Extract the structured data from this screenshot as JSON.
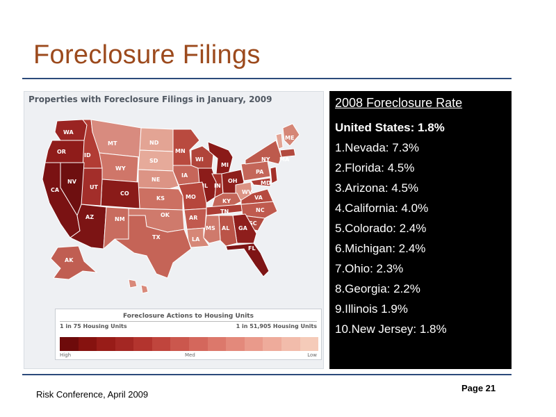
{
  "slide": {
    "title": "Foreclosure Filings",
    "footer_left": "Risk Conference, April 2009",
    "footer_right": "Page 21"
  },
  "map": {
    "heading": "Properties with Foreclosure Filings in January, 2009",
    "states": [
      {
        "abbr": "WA",
        "color": "#9a2422"
      },
      {
        "abbr": "OR",
        "color": "#8f1c1a"
      },
      {
        "abbr": "ID",
        "color": "#b23c34"
      },
      {
        "abbr": "MT",
        "color": "#d88b7f"
      },
      {
        "abbr": "ND",
        "color": "#e3a494"
      },
      {
        "abbr": "MN",
        "color": "#b94a3f"
      },
      {
        "abbr": "WY",
        "color": "#cf7669"
      },
      {
        "abbr": "SD",
        "color": "#e6aa9a"
      },
      {
        "abbr": "NE",
        "color": "#dc9485"
      },
      {
        "abbr": "IA",
        "color": "#c6665a"
      },
      {
        "abbr": "NV",
        "color": "#6e0f10"
      },
      {
        "abbr": "UT",
        "color": "#a32e2a"
      },
      {
        "abbr": "CO",
        "color": "#8a1b19"
      },
      {
        "abbr": "KS",
        "color": "#cc7062"
      },
      {
        "abbr": "MO",
        "color": "#b6463c"
      },
      {
        "abbr": "CA",
        "color": "#7a1213"
      },
      {
        "abbr": "AZ",
        "color": "#7c1414"
      },
      {
        "abbr": "NM",
        "color": "#c86c5f"
      },
      {
        "abbr": "OK",
        "color": "#cf7a6c"
      },
      {
        "abbr": "AR",
        "color": "#c15a4f"
      },
      {
        "abbr": "TX",
        "color": "#c56457"
      },
      {
        "abbr": "LA",
        "color": "#d68777"
      },
      {
        "abbr": "MS",
        "color": "#cf7a6c"
      },
      {
        "abbr": "AL",
        "color": "#bb5448"
      },
      {
        "abbr": "GA",
        "color": "#8e1e1c"
      },
      {
        "abbr": "FL",
        "color": "#7e1515"
      },
      {
        "abbr": "SC",
        "color": "#b24a3f"
      },
      {
        "abbr": "NC",
        "color": "#bf5a4e"
      },
      {
        "abbr": "TN",
        "color": "#ad3e36"
      },
      {
        "abbr": "KY",
        "color": "#c46659"
      },
      {
        "abbr": "IL",
        "color": "#8c1c1a"
      },
      {
        "abbr": "WI",
        "color": "#b0443a"
      },
      {
        "abbr": "MI",
        "color": "#8a1a18"
      },
      {
        "abbr": "IN",
        "color": "#a53029"
      },
      {
        "abbr": "OH",
        "color": "#8e201c"
      },
      {
        "abbr": "WV",
        "color": "#dc9485"
      },
      {
        "abbr": "VA",
        "color": "#b64a3f"
      },
      {
        "abbr": "PA",
        "color": "#c46659"
      },
      {
        "abbr": "NY",
        "color": "#bd5a4d"
      },
      {
        "abbr": "ME",
        "color": "#d58676"
      },
      {
        "abbr": "MD",
        "color": "#ad3b33"
      },
      {
        "abbr": "NJ",
        "color": "#a33029"
      },
      {
        "abbr": "MA",
        "color": "#b24a3f"
      },
      {
        "abbr": "VT",
        "color": "#e3a494"
      },
      {
        "abbr": "AK",
        "color": "#c05e52"
      },
      {
        "abbr": "HI",
        "color": "#d9897a"
      }
    ]
  },
  "legend": {
    "title": "Foreclosure Actions to Housing Units",
    "left_label": "1 in 75 Housing Units",
    "right_label": "1 in 51,905 Housing Units",
    "high": "High",
    "med": "Med",
    "low": "Low",
    "colors": [
      "#6e0b0b",
      "#86120f",
      "#981c18",
      "#a42723",
      "#b3342e",
      "#c0453d",
      "#cb574d",
      "#d4675c",
      "#dc786b",
      "#e3897b",
      "#e99a8b",
      "#eeab9b",
      "#f2bcab",
      "#f5cbb9"
    ]
  },
  "rates": {
    "title": "2008 Foreclosure Rate",
    "us": "United States: 1.8%",
    "items": [
      "1.Nevada: 7.3%",
      "2.Florida: 4.5%",
      "3.Arizona: 4.5%",
      "4.California: 4.0%",
      "5.Colorado: 2.4%",
      "6.Michigan: 2.4%",
      "7.Ohio: 2.3%",
      "8.Georgia: 2.2%",
      "9.Illinois 1.9%",
      "10.New Jersey: 1.8%"
    ]
  }
}
